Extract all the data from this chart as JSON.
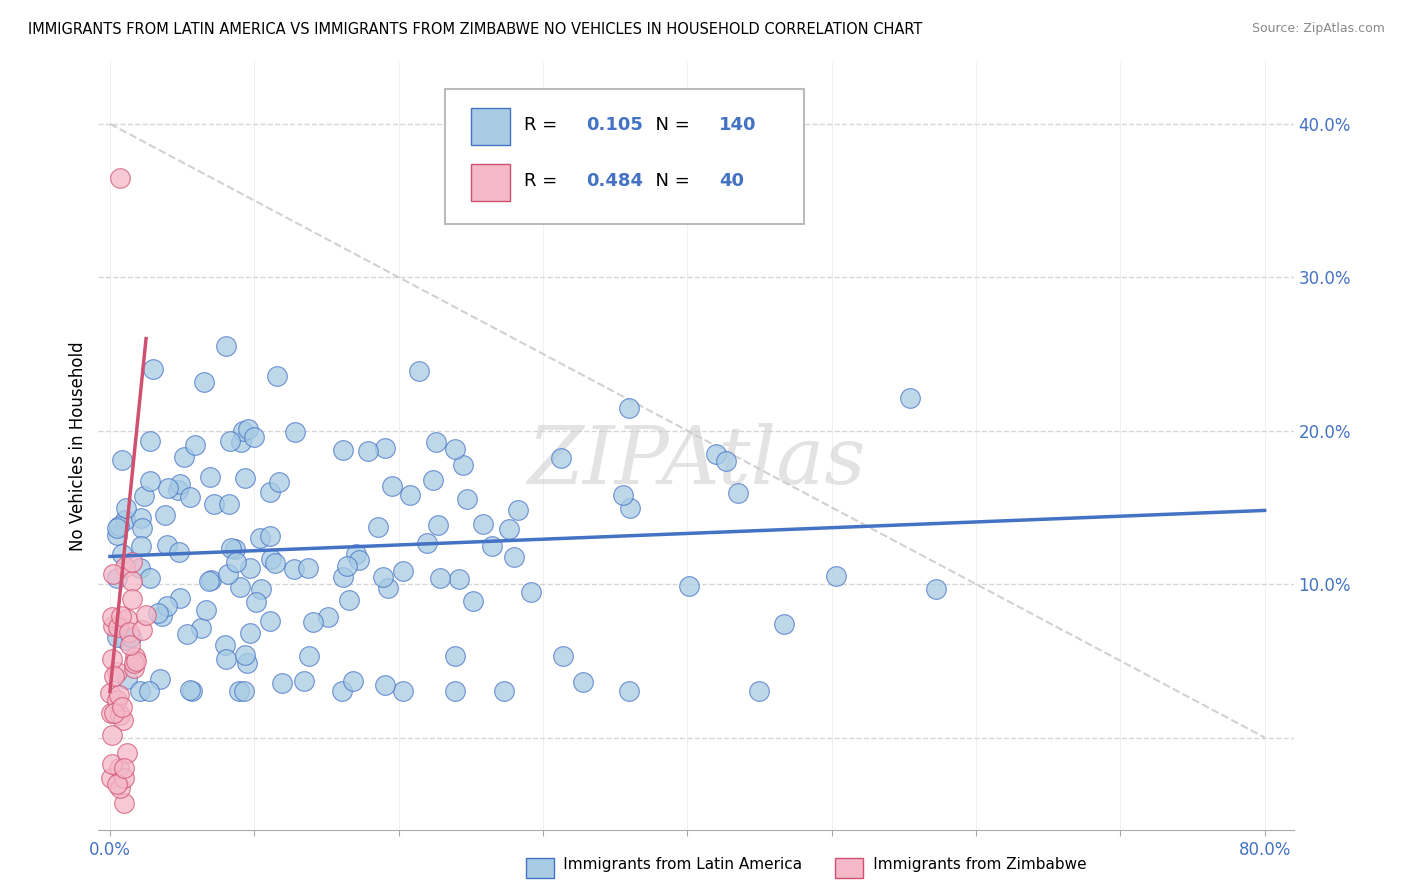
{
  "title": "IMMIGRANTS FROM LATIN AMERICA VS IMMIGRANTS FROM ZIMBABWE NO VEHICLES IN HOUSEHOLD CORRELATION CHART",
  "source": "Source: ZipAtlas.com",
  "ylabel": "No Vehicles in Household",
  "ytick_positions": [
    0.0,
    0.1,
    0.2,
    0.3,
    0.4
  ],
  "ytick_labels": [
    "",
    "10.0%",
    "20.0%",
    "30.0%",
    "40.0%"
  ],
  "xlim": [
    -0.008,
    0.82
  ],
  "ylim": [
    -0.06,
    0.44
  ],
  "legend_R1": "0.105",
  "legend_N1": "140",
  "legend_R2": "0.484",
  "legend_N2": "40",
  "color_latin": "#a8cce4",
  "color_latin_dark": "#4472c4",
  "color_zimbabwe": "#f4b8c8",
  "color_zimbabwe_dark": "#d05070",
  "color_tick_label": "#4472c4",
  "watermark_text": "ZIPAtlas",
  "latin_trend_x": [
    0.0,
    0.8
  ],
  "latin_trend_y": [
    0.118,
    0.148
  ],
  "zimbabwe_trend_x_end": 0.025,
  "zimbabwe_trend_start_y": 0.03,
  "zimbabwe_trend_end_y": 0.26,
  "ref_line_x": [
    0.0,
    0.8
  ],
  "ref_line_y": [
    0.4,
    0.0
  ]
}
